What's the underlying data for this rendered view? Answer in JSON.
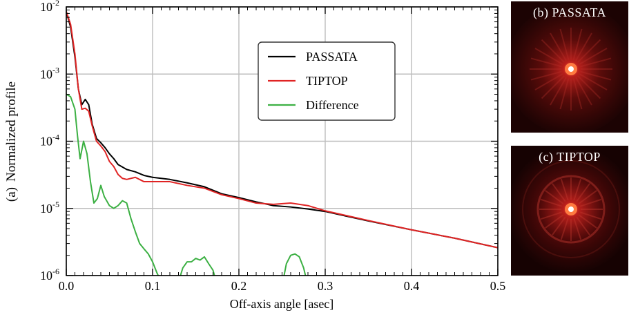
{
  "chart_data": {
    "type": "line",
    "panel_label": "(a)",
    "xlabel": "Off-axis angle [asec]",
    "ylabel": "Normalized profile",
    "xlim": [
      0.0,
      0.5
    ],
    "ylim": [
      1e-06,
      0.01
    ],
    "yscale": "log",
    "grid": true,
    "legend_position": "upper-center",
    "x_ticks": [
      {
        "value": 0.0,
        "label": "0.0"
      },
      {
        "value": 0.1,
        "label": "0.1"
      },
      {
        "value": 0.2,
        "label": "0.2"
      },
      {
        "value": 0.3,
        "label": "0.3"
      },
      {
        "value": 0.4,
        "label": "0.4"
      },
      {
        "value": 0.5,
        "label": "0.5"
      }
    ],
    "y_ticks": [
      {
        "value": 0.01,
        "base": "10",
        "exp": "-2"
      },
      {
        "value": 0.001,
        "base": "10",
        "exp": "-3"
      },
      {
        "value": 0.0001,
        "base": "10",
        "exp": "-4"
      },
      {
        "value": 1e-05,
        "base": "10",
        "exp": "-5"
      },
      {
        "value": 1e-06,
        "base": "10",
        "exp": "-6"
      }
    ],
    "series": [
      {
        "name": "PASSATA",
        "color": "#000000",
        "points": [
          [
            0.0,
            0.0085
          ],
          [
            0.005,
            0.005
          ],
          [
            0.01,
            0.0018
          ],
          [
            0.014,
            0.0006
          ],
          [
            0.018,
            0.00035
          ],
          [
            0.022,
            0.00042
          ],
          [
            0.026,
            0.00035
          ],
          [
            0.03,
            0.00018
          ],
          [
            0.035,
            0.00011
          ],
          [
            0.04,
            9.5e-05
          ],
          [
            0.045,
            8e-05
          ],
          [
            0.05,
            6.5e-05
          ],
          [
            0.055,
            5.5e-05
          ],
          [
            0.06,
            4.5e-05
          ],
          [
            0.07,
            3.8e-05
          ],
          [
            0.08,
            3.5e-05
          ],
          [
            0.09,
            3.1e-05
          ],
          [
            0.1,
            2.9e-05
          ],
          [
            0.12,
            2.7e-05
          ],
          [
            0.14,
            2.4e-05
          ],
          [
            0.16,
            2.1e-05
          ],
          [
            0.18,
            1.65e-05
          ],
          [
            0.2,
            1.45e-05
          ],
          [
            0.22,
            1.25e-05
          ],
          [
            0.24,
            1.1e-05
          ],
          [
            0.26,
            1.05e-05
          ],
          [
            0.28,
            9.8e-06
          ],
          [
            0.3,
            9e-06
          ],
          [
            0.35,
            6.5e-06
          ],
          [
            0.4,
            4.8e-06
          ],
          [
            0.45,
            3.6e-06
          ],
          [
            0.5,
            2.6e-06
          ]
        ]
      },
      {
        "name": "TIPTOP",
        "color": "#e02424",
        "points": [
          [
            0.0,
            0.0085
          ],
          [
            0.005,
            0.0055
          ],
          [
            0.01,
            0.002
          ],
          [
            0.014,
            0.0006
          ],
          [
            0.018,
            0.0003
          ],
          [
            0.022,
            0.00031
          ],
          [
            0.026,
            0.00028
          ],
          [
            0.03,
            0.00017
          ],
          [
            0.035,
            0.0001
          ],
          [
            0.04,
            8.5e-05
          ],
          [
            0.045,
            7e-05
          ],
          [
            0.05,
            5e-05
          ],
          [
            0.055,
            4.2e-05
          ],
          [
            0.06,
            3.2e-05
          ],
          [
            0.065,
            2.8e-05
          ],
          [
            0.07,
            2.7e-05
          ],
          [
            0.08,
            2.9e-05
          ],
          [
            0.09,
            2.5e-05
          ],
          [
            0.1,
            2.5e-05
          ],
          [
            0.12,
            2.5e-05
          ],
          [
            0.14,
            2.2e-05
          ],
          [
            0.16,
            2e-05
          ],
          [
            0.18,
            1.6e-05
          ],
          [
            0.2,
            1.4e-05
          ],
          [
            0.22,
            1.2e-05
          ],
          [
            0.24,
            1.15e-05
          ],
          [
            0.26,
            1.2e-05
          ],
          [
            0.28,
            1.1e-05
          ],
          [
            0.3,
            9.2e-06
          ],
          [
            0.35,
            6.6e-06
          ],
          [
            0.4,
            4.8e-06
          ],
          [
            0.45,
            3.6e-06
          ],
          [
            0.5,
            2.6e-06
          ]
        ]
      },
      {
        "name": "Difference",
        "color": "#3cb043",
        "points": [
          [
            0.0,
            0.0005
          ],
          [
            0.005,
            0.00046
          ],
          [
            0.01,
            0.0003
          ],
          [
            0.013,
            0.00012
          ],
          [
            0.016,
            5.5e-05
          ],
          [
            0.02,
            0.0001
          ],
          [
            0.024,
            6.5e-05
          ],
          [
            0.028,
            2.5e-05
          ],
          [
            0.032,
            1.2e-05
          ],
          [
            0.036,
            1.4e-05
          ],
          [
            0.04,
            2.2e-05
          ],
          [
            0.044,
            1.5e-05
          ],
          [
            0.05,
            1.1e-05
          ],
          [
            0.055,
            1e-05
          ],
          [
            0.06,
            1.1e-05
          ],
          [
            0.065,
            1.3e-05
          ],
          [
            0.07,
            1.2e-05
          ],
          [
            0.075,
            7e-06
          ],
          [
            0.08,
            4.5e-06
          ],
          [
            0.085,
            3e-06
          ],
          [
            0.09,
            2.5e-06
          ],
          [
            0.095,
            2.1e-06
          ],
          [
            0.1,
            1.6e-06
          ],
          [
            0.105,
            1.1e-06
          ],
          [
            0.11,
            8e-07
          ],
          null,
          [
            0.13,
            8e-07
          ],
          [
            0.135,
            1.3e-06
          ],
          [
            0.14,
            1.6e-06
          ],
          [
            0.145,
            1.6e-06
          ],
          [
            0.15,
            1.8e-06
          ],
          [
            0.155,
            1.7e-06
          ],
          [
            0.16,
            1.9e-06
          ],
          [
            0.165,
            1.5e-06
          ],
          [
            0.17,
            1.2e-06
          ],
          [
            0.175,
            7e-07
          ],
          null,
          [
            0.25,
            7e-07
          ],
          [
            0.255,
            1.5e-06
          ],
          [
            0.26,
            2e-06
          ],
          [
            0.265,
            2.1e-06
          ],
          [
            0.27,
            1.9e-06
          ],
          [
            0.275,
            1.3e-06
          ],
          [
            0.28,
            7e-07
          ]
        ]
      }
    ]
  },
  "insets": [
    {
      "label": "(b)  PASSATA"
    },
    {
      "label": "(c)  TIPTOP"
    }
  ]
}
